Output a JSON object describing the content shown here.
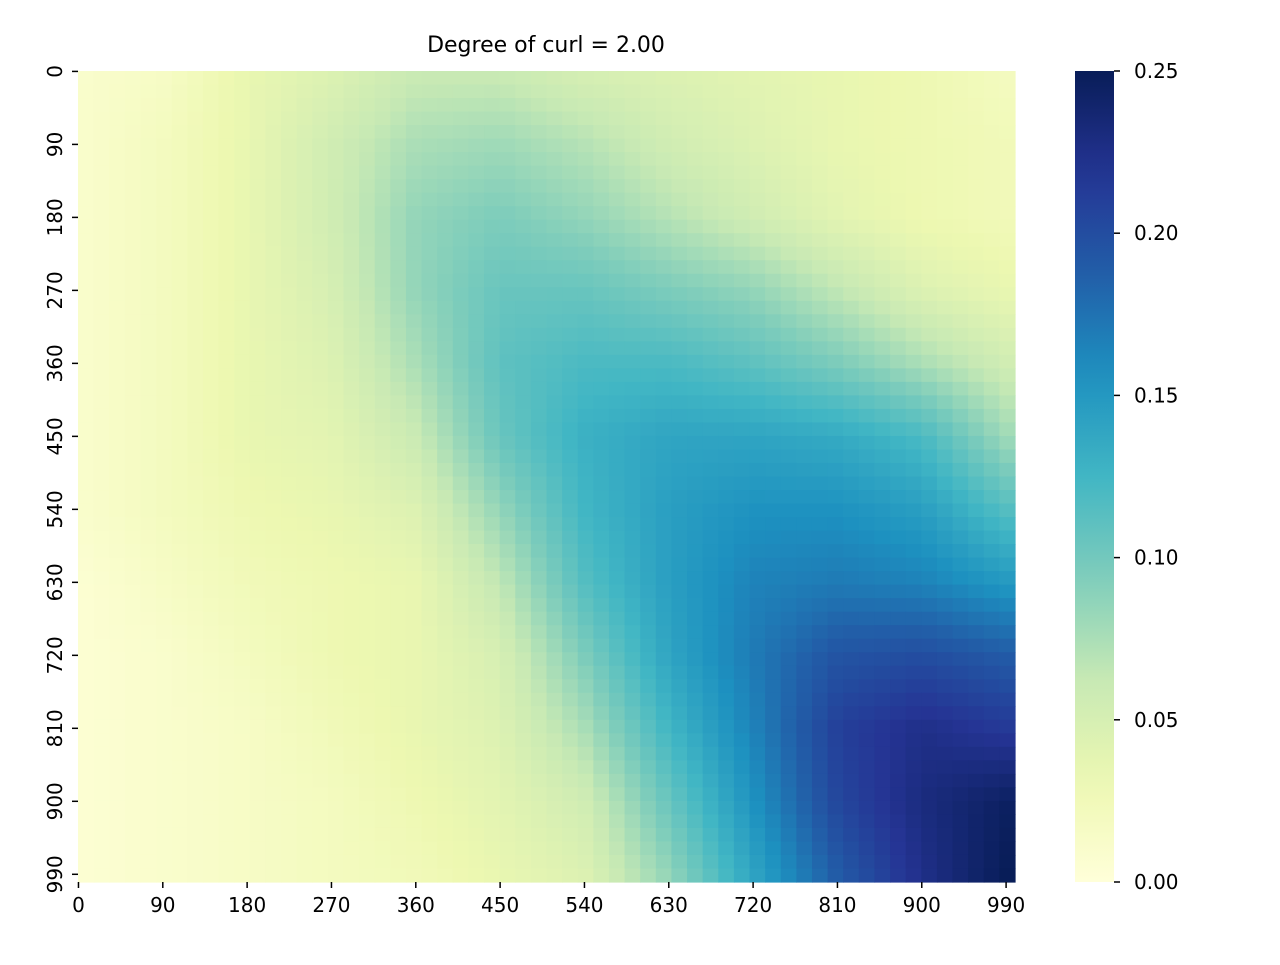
{
  "chart_data": {
    "type": "heatmap",
    "title": "Degree of curl = 2.00",
    "xlabel": "",
    "ylabel": "",
    "x_ticks": [
      0,
      90,
      180,
      270,
      360,
      450,
      540,
      630,
      720,
      810,
      900,
      990
    ],
    "y_ticks": [
      0,
      90,
      180,
      270,
      360,
      450,
      540,
      630,
      720,
      810,
      900,
      990
    ],
    "x_range": [
      0,
      999
    ],
    "y_range": [
      0,
      999
    ],
    "y_inverted": true,
    "colormap": "YlGnBu",
    "colorbar": {
      "range": [
        0.0,
        0.25
      ],
      "ticks": [
        "0.00",
        "0.05",
        "0.10",
        "0.15",
        "0.20",
        "0.25"
      ]
    },
    "grid_step": 90,
    "values": [
      [
        0.01,
        0.015,
        0.035,
        0.045,
        0.06,
        0.06,
        0.05,
        0.045,
        0.04,
        0.035,
        0.03,
        0.02
      ],
      [
        0.01,
        0.02,
        0.035,
        0.055,
        0.075,
        0.08,
        0.07,
        0.055,
        0.045,
        0.035,
        0.03,
        0.025
      ],
      [
        0.01,
        0.02,
        0.035,
        0.055,
        0.085,
        0.095,
        0.085,
        0.07,
        0.055,
        0.04,
        0.03,
        0.025
      ],
      [
        0.01,
        0.02,
        0.035,
        0.05,
        0.085,
        0.105,
        0.105,
        0.095,
        0.085,
        0.065,
        0.045,
        0.035
      ],
      [
        0.01,
        0.02,
        0.035,
        0.045,
        0.075,
        0.11,
        0.12,
        0.12,
        0.11,
        0.095,
        0.075,
        0.055
      ],
      [
        0.01,
        0.02,
        0.035,
        0.04,
        0.06,
        0.105,
        0.13,
        0.14,
        0.14,
        0.135,
        0.12,
        0.08
      ],
      [
        0.01,
        0.02,
        0.03,
        0.035,
        0.045,
        0.085,
        0.125,
        0.145,
        0.155,
        0.155,
        0.145,
        0.115
      ],
      [
        0.005,
        0.015,
        0.025,
        0.03,
        0.035,
        0.065,
        0.115,
        0.145,
        0.165,
        0.17,
        0.165,
        0.15
      ],
      [
        0.005,
        0.01,
        0.02,
        0.03,
        0.035,
        0.05,
        0.095,
        0.14,
        0.17,
        0.195,
        0.2,
        0.19
      ],
      [
        0.005,
        0.01,
        0.015,
        0.025,
        0.035,
        0.045,
        0.075,
        0.125,
        0.165,
        0.21,
        0.225,
        0.215
      ],
      [
        0.005,
        0.01,
        0.015,
        0.02,
        0.03,
        0.04,
        0.055,
        0.105,
        0.155,
        0.205,
        0.23,
        0.245
      ],
      [
        0.005,
        0.01,
        0.015,
        0.02,
        0.025,
        0.035,
        0.045,
        0.085,
        0.14,
        0.19,
        0.225,
        0.25
      ]
    ]
  }
}
